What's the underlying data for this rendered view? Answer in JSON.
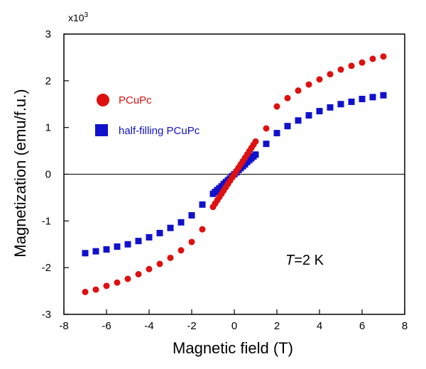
{
  "chart_data": {
    "type": "scatter",
    "xlabel": "Magnetic field (T)",
    "ylabel": "Magnetization (emu/f.u.)",
    "y_multiplier": {
      "base": "x10",
      "exponent": "3"
    },
    "xlim": [
      -8,
      8
    ],
    "ylim": [
      -3000,
      3000
    ],
    "x_ticks": [
      -8,
      -6,
      -4,
      -2,
      0,
      2,
      4,
      6,
      8
    ],
    "y_ticks": [
      -3000,
      -2000,
      -1000,
      0,
      1000,
      2000,
      3000
    ],
    "x_tick_labels": [
      "-8",
      "-6",
      "-4",
      "-2",
      "0",
      "2",
      "4",
      "6",
      "8"
    ],
    "y_tick_labels": [
      "-3",
      "-2",
      "-1",
      "0",
      "1",
      "2",
      "3"
    ],
    "grid": false,
    "zero_line": true,
    "legend_position": "upper-left",
    "annotation": {
      "italic_part": "T",
      "rest": "=2 K"
    },
    "series": [
      {
        "name": "PCuPc",
        "marker": "circle",
        "color": "#dd1111",
        "x": [
          -7.0,
          -6.5,
          -6.0,
          -5.5,
          -5.0,
          -4.5,
          -4.0,
          -3.5,
          -3.0,
          -2.5,
          -2.0,
          -1.5,
          -1.0,
          -0.9,
          -0.8,
          -0.7,
          -0.6,
          -0.5,
          -0.4,
          -0.3,
          -0.2,
          -0.1,
          0.0,
          0.1,
          0.2,
          0.3,
          0.4,
          0.5,
          0.6,
          0.7,
          0.8,
          0.9,
          1.0,
          1.5,
          2.0,
          2.5,
          3.0,
          3.5,
          4.0,
          4.5,
          5.0,
          5.5,
          6.0,
          6.5,
          7.0
        ],
        "y": [
          -2520,
          -2470,
          -2390,
          -2320,
          -2240,
          -2140,
          -2030,
          -1920,
          -1790,
          -1630,
          -1450,
          -1180,
          -700,
          -630,
          -560,
          -490,
          -420,
          -350,
          -280,
          -210,
          -140,
          -70,
          0,
          70,
          140,
          210,
          280,
          350,
          420,
          490,
          560,
          630,
          700,
          980,
          1450,
          1630,
          1790,
          1920,
          2030,
          2140,
          2240,
          2320,
          2390,
          2470,
          2520
        ]
      },
      {
        "name": "half-filling PCuPc",
        "marker": "square",
        "color": "#1111cc",
        "x": [
          -7.0,
          -6.5,
          -6.0,
          -5.5,
          -5.0,
          -4.5,
          -4.0,
          -3.5,
          -3.0,
          -2.5,
          -2.0,
          -1.5,
          -1.0,
          -0.9,
          -0.8,
          -0.7,
          -0.6,
          -0.5,
          -0.4,
          -0.3,
          -0.2,
          -0.1,
          0.0,
          0.1,
          0.2,
          0.3,
          0.4,
          0.5,
          0.6,
          0.7,
          0.8,
          0.9,
          1.0,
          1.5,
          2.0,
          2.5,
          3.0,
          3.5,
          4.0,
          4.5,
          5.0,
          5.5,
          6.0,
          6.5,
          7.0
        ],
        "y": [
          -1690,
          -1650,
          -1610,
          -1550,
          -1500,
          -1430,
          -1350,
          -1260,
          -1150,
          -1030,
          -880,
          -650,
          -420,
          -380,
          -340,
          -300,
          -260,
          -210,
          -170,
          -130,
          -90,
          -40,
          0,
          40,
          90,
          130,
          170,
          210,
          260,
          300,
          340,
          380,
          420,
          650,
          880,
          1030,
          1150,
          1260,
          1350,
          1430,
          1500,
          1550,
          1610,
          1650,
          1690
        ]
      }
    ]
  }
}
